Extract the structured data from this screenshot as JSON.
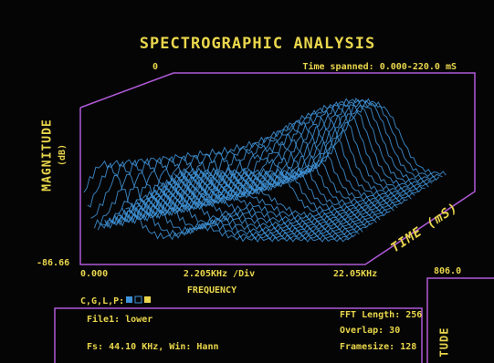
{
  "header": {
    "title": "SPECTROGRAPHIC ANALYSIS",
    "origin_label": "0",
    "time_spanned": "Time spanned: 0.000-220.0 mS"
  },
  "axes": {
    "y_title": "MAGNITUDE",
    "y_unit": "(dB)",
    "y_min_label": "-86.66",
    "x_start": "0.000",
    "x_div": "2.205KHz /Div",
    "x_end": "22.05KHz",
    "x_title": "FREQUENCY",
    "z_title": "TIME (mS)"
  },
  "side_panel": {
    "value": "806.0",
    "axis_fragment": "TUDE"
  },
  "controls": {
    "cglp": "C,G,L,P:"
  },
  "info": {
    "file": "File1: lower",
    "fs_win": "Fs: 44.10 KHz, Win: Hann",
    "fft_length": "FFT Length: 256",
    "overlap": "Overlap: 30",
    "framesize": "Framesize: 128"
  }
}
